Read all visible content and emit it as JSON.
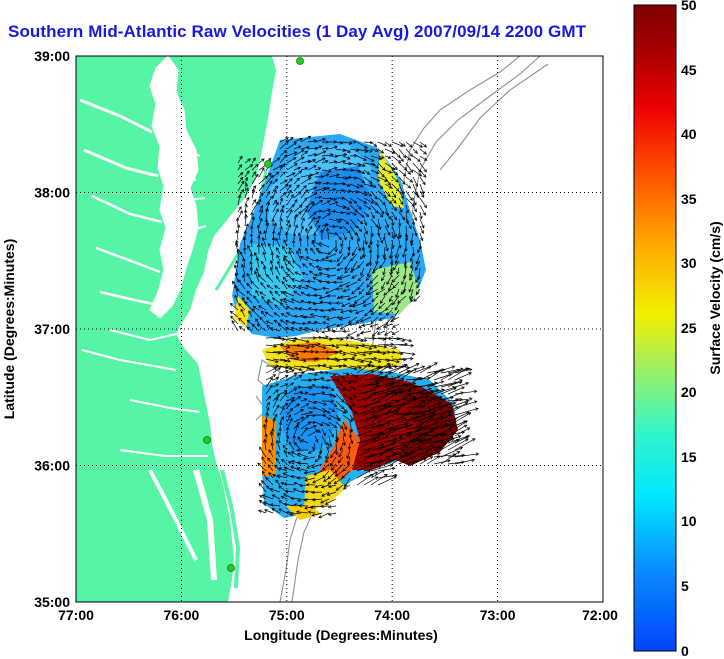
{
  "title": "Southern Mid-Atlantic Raw Velocities (1 Day Avg) 2007/09/14 2200 GMT",
  "x_axis": {
    "label": "Longitude (Degrees:Minutes)",
    "ticks": [
      "77:00",
      "76:00",
      "75:00",
      "74:00",
      "73:00",
      "72:00"
    ],
    "range": [
      -77,
      -72
    ]
  },
  "y_axis": {
    "label": "Latitude (Degrees:Minutes)",
    "ticks": [
      "39:00",
      "38:00",
      "37:00",
      "36:00",
      "35:00"
    ],
    "range": [
      35,
      39
    ]
  },
  "colorbar": {
    "label": "Surface Velocity (cm/s)",
    "ticks": [
      "50",
      "45",
      "40",
      "35",
      "30",
      "25",
      "20",
      "15",
      "10",
      "5",
      "0"
    ],
    "range": [
      0,
      50
    ]
  },
  "colors": {
    "title": "#1818e0",
    "land": "#55f5a5",
    "ocean": "#ffffff",
    "grid": "#000000",
    "bathymetry": "#909090",
    "station": "#22cc22"
  },
  "grid": true,
  "stations_count": 4
}
